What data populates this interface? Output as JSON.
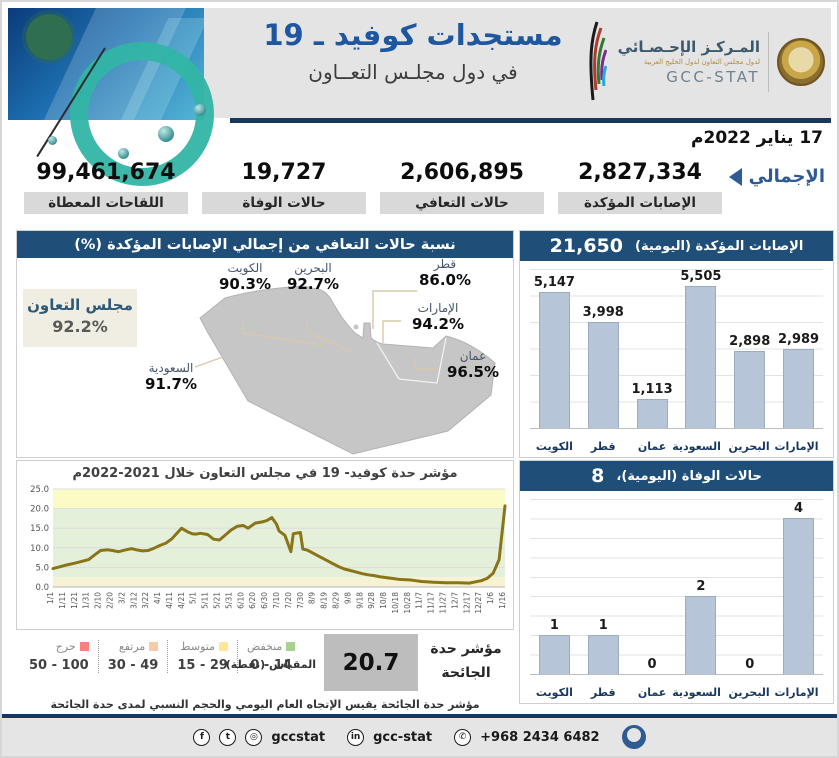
{
  "header": {
    "title_line1": "مستجدات كوفيد ـ 19",
    "title_line2": "في دول مجلـس التعــاون",
    "org_name_ar": "المـركـز الإحـصـائي",
    "org_sub_ar": "لدول مجلس التعاون لدول الخليج العربية",
    "org_name_en": "GCC-STAT"
  },
  "date_line": "17 يناير 2022م",
  "totals": {
    "label": "الإجمالي",
    "items": [
      {
        "value": "2,827,334",
        "label": "الإصابات المؤكدة"
      },
      {
        "value": "2,606,895",
        "label": "حالات التعافي"
      },
      {
        "value": "19,727",
        "label": "حالات الوفاة"
      },
      {
        "value": "99,461,674",
        "label": "اللقاحات المعطاة"
      }
    ]
  },
  "recovery_map": {
    "title": "نسبة حالات التعافي من إجمالي الإصابات المؤكدة (%)",
    "gcc_label": "مجلس التعاون",
    "gcc_value": "92.2%",
    "countries": [
      {
        "name": "الكويت",
        "value": "90.3%"
      },
      {
        "name": "البحرين",
        "value": "92.7%"
      },
      {
        "name": "قطر",
        "value": "86.0%"
      },
      {
        "name": "الإمارات",
        "value": "94.2%"
      },
      {
        "name": "عمان",
        "value": "96.5%"
      },
      {
        "name": "السعودية",
        "value": "91.7%"
      }
    ]
  },
  "chart_data": [
    {
      "type": "bar",
      "title": "الإصابات المؤكدة (اليومية)",
      "total_label": "21,650",
      "categories": [
        "الكويت",
        "قطر",
        "عمان",
        "السعودية",
        "البحرين",
        "الإمارات"
      ],
      "values": [
        5147,
        3998,
        1113,
        5505,
        2898,
        2989
      ],
      "value_labels": [
        "5,147",
        "3,998",
        "1,113",
        "5,505",
        "2,898",
        "2,989"
      ],
      "ylim": [
        0,
        6000
      ],
      "gridline_step": 1000,
      "legend_position": "none"
    },
    {
      "type": "bar",
      "title": "حالات الوفاة (اليومية)،",
      "total_label": "8",
      "categories": [
        "الكويت",
        "قطر",
        "عمان",
        "السعودية",
        "البحرين",
        "الإمارات"
      ],
      "values": [
        1,
        1,
        0,
        2,
        0,
        4
      ],
      "value_labels": [
        "1",
        "1",
        "0",
        "2",
        "0",
        "4"
      ],
      "ylim": [
        0,
        4.5
      ],
      "gridline_step": 0.5,
      "legend_position": "none"
    },
    {
      "type": "line",
      "title": "مؤشر حدة كوفيد- 19 في مجلس التعاون خلال 2021-2022م",
      "xlabel": "",
      "ylabel": "",
      "ylim": [
        0,
        25
      ],
      "y_ticks": [
        0,
        5,
        10,
        15,
        20,
        25
      ],
      "x_labels": [
        "1/1",
        "1/11",
        "1/21",
        "1/31",
        "2/10",
        "2/20",
        "3/2",
        "3/12",
        "3/22",
        "4/1",
        "4/11",
        "4/21",
        "5/1",
        "5/11",
        "5/21",
        "5/31",
        "6/10",
        "6/20",
        "6/30",
        "7/10",
        "7/20",
        "7/30",
        "8/9",
        "8/19",
        "8/29",
        "9/8",
        "9/18",
        "9/28",
        "10/8",
        "10/18",
        "10/28",
        "11/7",
        "11/17",
        "11/27",
        "12/7",
        "12/17",
        "12/27",
        "1/6",
        "1/16"
      ],
      "points": [
        [
          0,
          4.7
        ],
        [
          1,
          5.5
        ],
        [
          2,
          6.2
        ],
        [
          3,
          7.0
        ],
        [
          3.5,
          8.2
        ],
        [
          4,
          9.3
        ],
        [
          4.6,
          9.5
        ],
        [
          5,
          9.3
        ],
        [
          5.5,
          9.0
        ],
        [
          6,
          9.4
        ],
        [
          6.6,
          9.8
        ],
        [
          7,
          9.5
        ],
        [
          7.5,
          9.2
        ],
        [
          8,
          9.3
        ],
        [
          8.5,
          9.9
        ],
        [
          9,
          10.6
        ],
        [
          9.5,
          11.2
        ],
        [
          10,
          12.3
        ],
        [
          10.8,
          15.0
        ],
        [
          11.3,
          14.1
        ],
        [
          11.7,
          13.6
        ],
        [
          12,
          13.5
        ],
        [
          12.4,
          13.7
        ],
        [
          13,
          13.4
        ],
        [
          13.5,
          12.2
        ],
        [
          14,
          12.0
        ],
        [
          14.5,
          13.3
        ],
        [
          15,
          14.6
        ],
        [
          15.5,
          15.5
        ],
        [
          16,
          15.7
        ],
        [
          16.4,
          15.0
        ],
        [
          17,
          16.3
        ],
        [
          17.6,
          16.6
        ],
        [
          18,
          17.0
        ],
        [
          18.4,
          17.7
        ],
        [
          18.8,
          16.0
        ],
        [
          19,
          14.3
        ],
        [
          19.5,
          13.2
        ],
        [
          20,
          9.0
        ],
        [
          20.2,
          13.6
        ],
        [
          20.8,
          13.9
        ],
        [
          21,
          9.7
        ],
        [
          21.4,
          9.4
        ],
        [
          22,
          8.4
        ],
        [
          22.5,
          7.6
        ],
        [
          23,
          6.8
        ],
        [
          23.5,
          6.0
        ],
        [
          24,
          5.2
        ],
        [
          24.5,
          4.6
        ],
        [
          25,
          4.2
        ],
        [
          25.5,
          3.8
        ],
        [
          26,
          3.4
        ],
        [
          26.5,
          3.1
        ],
        [
          27,
          2.9
        ],
        [
          27.5,
          2.6
        ],
        [
          28,
          2.4
        ],
        [
          28.5,
          2.2
        ],
        [
          29,
          2.0
        ],
        [
          29.5,
          1.9
        ],
        [
          30,
          1.8
        ],
        [
          30.5,
          1.6
        ],
        [
          31,
          1.4
        ],
        [
          31.5,
          1.3
        ],
        [
          32,
          1.2
        ],
        [
          33,
          1.1
        ],
        [
          34,
          1.1
        ],
        [
          35,
          1.0
        ],
        [
          36,
          1.6
        ],
        [
          36.5,
          2.2
        ],
        [
          37,
          3.5
        ],
        [
          37.5,
          7.0
        ],
        [
          38,
          20.7
        ]
      ],
      "bands": [
        {
          "from": 20,
          "to": 25,
          "color": "#fbfbc6"
        },
        {
          "from": 2.5,
          "to": 20,
          "color": "#e5f0db"
        },
        {
          "from": 0,
          "to": 2.5,
          "color": "#f6f2d3"
        }
      ],
      "line_color": "#8a7418",
      "grid": true,
      "legend_position": "none"
    }
  ],
  "severity": {
    "label_line1": "مؤشر حدة",
    "label_line2": "الجائحة",
    "current_value": "20.7",
    "scale_label": "المقياس (نقطة)",
    "scale": [
      {
        "name": "منخفض",
        "range": "0 - 14",
        "color": "#a9d08e"
      },
      {
        "name": "متوسط",
        "range": "15 - 29",
        "color": "#ffe699"
      },
      {
        "name": "مرتفع",
        "range": "30 - 49",
        "color": "#f8cbad"
      },
      {
        "name": "حرج",
        "range": "50 - 100",
        "color": "#ff7c80"
      }
    ],
    "footnote": "مؤشر حدة الجائحة يقيس الإتجاه العام اليومي والحجم النسبي لمدى حدة الجائحة"
  },
  "footer": {
    "social_handle": "gccstat",
    "website_handle": "gcc-stat",
    "phone": "+968 2434 6482"
  },
  "colors": {
    "panel_header": "#1f4e79",
    "bar_fill": "#b7c5d8",
    "accent_blue": "#1e56a0",
    "rule_blue": "#17375e",
    "map_gray": "#c6c6c6",
    "line_color": "#8a7418",
    "value_box_gray": "#bdbdbd"
  }
}
